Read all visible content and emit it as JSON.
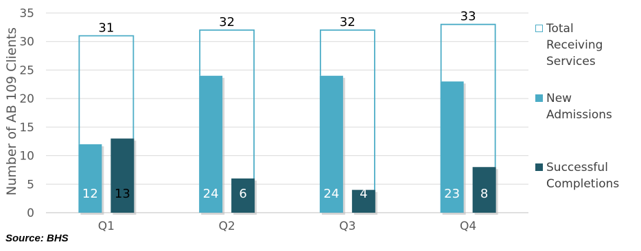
{
  "chart_data": {
    "type": "bar",
    "categories": [
      "Q1",
      "Q2",
      "Q3",
      "Q4"
    ],
    "series": [
      {
        "name": "Total Receiving Services",
        "values": [
          31,
          32,
          32,
          33
        ],
        "color": "#4bacc6",
        "style": "outline"
      },
      {
        "name": "New Admissions",
        "values": [
          12,
          24,
          24,
          23
        ],
        "color": "#4bacc6"
      },
      {
        "name": "Successful Completions",
        "values": [
          13,
          6,
          4,
          8
        ],
        "color": "#215968"
      }
    ],
    "ylabel": "Number of AB 109 Clients",
    "ylim": [
      0,
      35
    ],
    "yticks": [
      0,
      5,
      10,
      15,
      20,
      25,
      30,
      35
    ],
    "grid": true,
    "legend": "right"
  },
  "source": "Source: BHS"
}
